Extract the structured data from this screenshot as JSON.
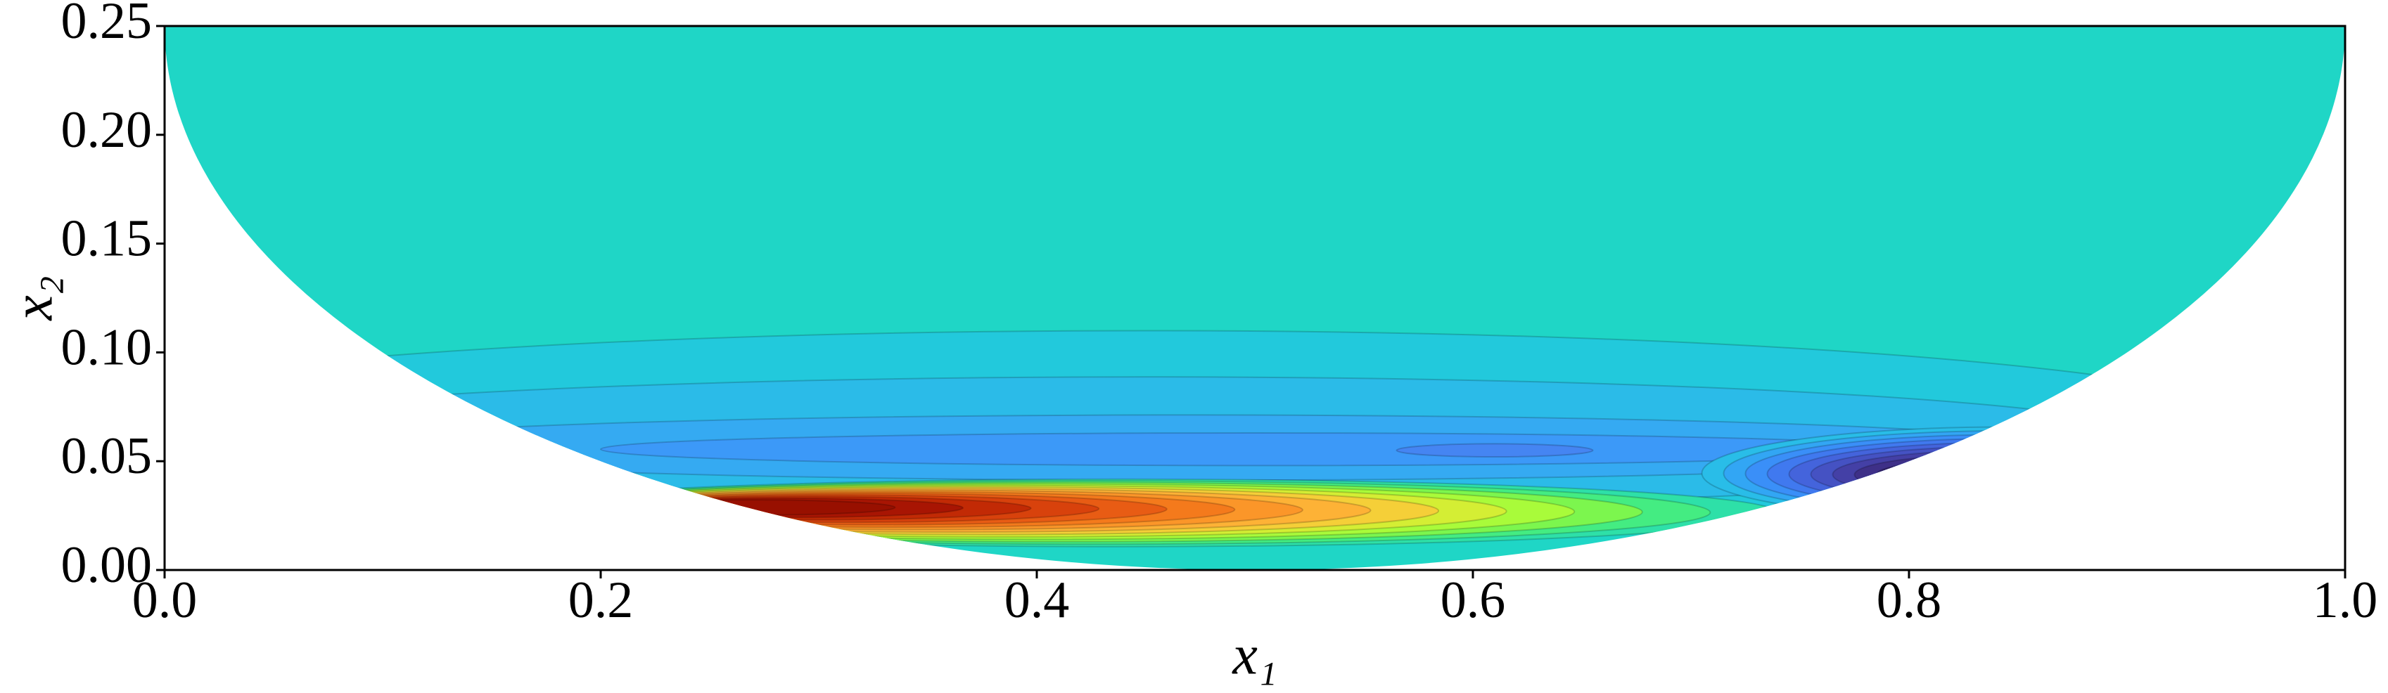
{
  "chart_data": {
    "type": "contour",
    "xlabel": "x₁",
    "ylabel": "x₂",
    "xlim": [
      0,
      1
    ],
    "ylim": [
      0,
      0.25
    ],
    "xticks": [
      {
        "value": 0,
        "label": "0.0"
      },
      {
        "value": 0.2,
        "label": "0.2"
      },
      {
        "value": 0.4,
        "label": "0.4"
      },
      {
        "value": 0.6,
        "label": "0.6"
      },
      {
        "value": 0.8,
        "label": "0.8"
      },
      {
        "value": 1,
        "label": "1.0"
      }
    ],
    "yticks": [
      {
        "value": 0,
        "label": "0.00"
      },
      {
        "value": 0.05,
        "label": "0.05"
      },
      {
        "value": 0.1,
        "label": "0.10"
      },
      {
        "value": 0.15,
        "label": "0.15"
      },
      {
        "value": 0.2,
        "label": "0.20"
      },
      {
        "value": 0.25,
        "label": "0.25"
      }
    ]
  }
}
